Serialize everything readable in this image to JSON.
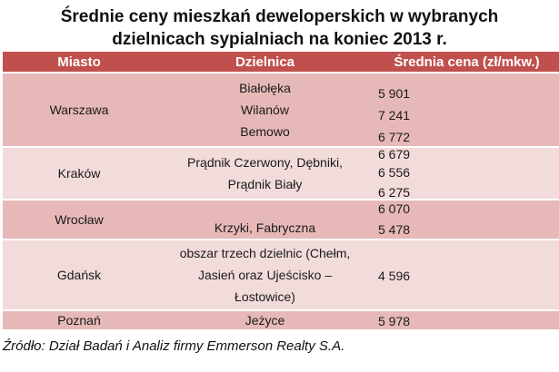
{
  "title": {
    "line1": "Średnie ceny mieszkań deweloperskich w wybranych",
    "line2": "dzielnicach sypialniach na koniec 2013 r."
  },
  "headers": {
    "city": "Miasto",
    "district": "Dzielnica",
    "price": "Średnia cena (zł/mkw.)"
  },
  "rows": [
    {
      "city": "Warszawa",
      "districts": [
        "Białołęka",
        "Wilanów",
        "Bemowo"
      ],
      "prices": [
        "5 901",
        "7 241",
        "6 772"
      ]
    },
    {
      "city": "Kraków",
      "districts": [
        "Prądnik Czerwony, Dębniki,",
        "Prądnik Biały"
      ],
      "prices": [
        "6 679",
        "6 556",
        "6 275"
      ]
    },
    {
      "city": "Wrocław",
      "districts": [
        "Krzyki, Fabryczna"
      ],
      "prices": [
        "6 070",
        "5 478"
      ]
    },
    {
      "city": "Gdańsk",
      "districts": [
        "obszar trzech dzielnic (Chełm,",
        "Jasień oraz Ujeścisko –",
        "Łostowice)"
      ],
      "prices": [
        "4 596"
      ]
    },
    {
      "city": "Poznań",
      "districts": [
        "Jeżyce"
      ],
      "prices": [
        "5 978"
      ]
    }
  ],
  "source": "Źródło: Dział Badań i Analiz firmy Emmerson Realty S.A."
}
